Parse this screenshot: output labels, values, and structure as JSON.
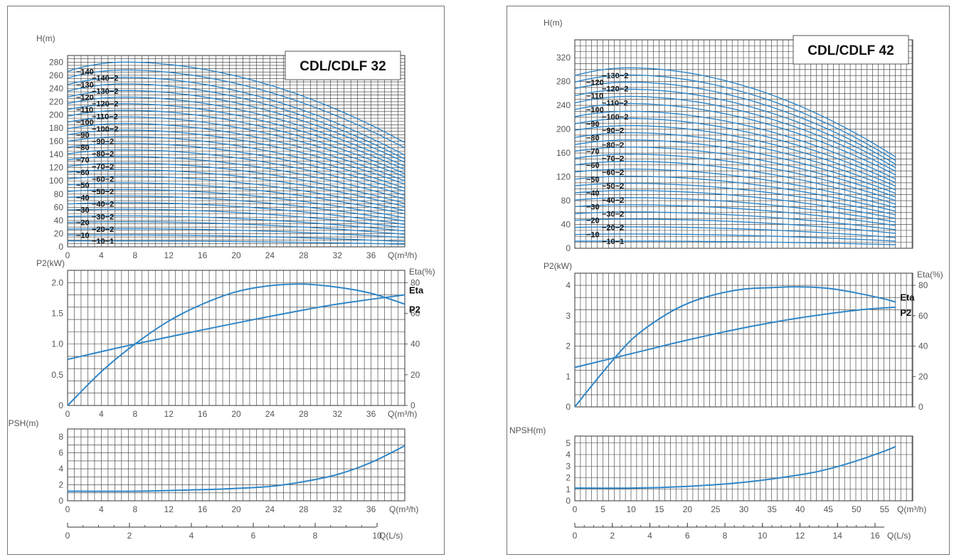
{
  "colors": {
    "curve": "#2f86c8",
    "grid": "#333333",
    "frame": "#777777"
  },
  "chart_data": [
    {
      "type": "line",
      "model": "CDL/CDLF 32",
      "head": {
        "ylabel": "H(m)",
        "xlabel": "Q(m³/h)",
        "xlim": [
          0,
          40
        ],
        "ylim": [
          0,
          290
        ],
        "xticks": [
          0,
          4,
          8,
          12,
          16,
          20,
          24,
          28,
          32,
          36
        ],
        "yticks": [
          0,
          20,
          40,
          60,
          80,
          100,
          120,
          140,
          160,
          180,
          200,
          220,
          240,
          260,
          280
        ],
        "series": [
          {
            "name": "10-1",
            "H0": 9,
            "Hmax": 8.8,
            "Hend": 4
          },
          {
            "name": "10",
            "H0": 18,
            "Hmax": 18,
            "Hend": 8
          },
          {
            "name": "20-2",
            "H0": 27,
            "Hmax": 27.5,
            "Hend": 14
          },
          {
            "name": "20",
            "H0": 37,
            "Hmax": 38,
            "Hend": 19
          },
          {
            "name": "30-2",
            "H0": 46,
            "Hmax": 47,
            "Hend": 24
          },
          {
            "name": "30",
            "H0": 56,
            "Hmax": 57,
            "Hend": 29
          },
          {
            "name": "40-2",
            "H0": 65,
            "Hmax": 67,
            "Hend": 34
          },
          {
            "name": "40",
            "H0": 75,
            "Hmax": 77,
            "Hend": 39
          },
          {
            "name": "50-2",
            "H0": 84,
            "Hmax": 87,
            "Hend": 44
          },
          {
            "name": "50",
            "H0": 94,
            "Hmax": 97,
            "Hend": 50
          },
          {
            "name": "60-2",
            "H0": 103,
            "Hmax": 107,
            "Hend": 55
          },
          {
            "name": "60",
            "H0": 113,
            "Hmax": 117,
            "Hend": 61
          },
          {
            "name": "70-2",
            "H0": 122,
            "Hmax": 127,
            "Hend": 66
          },
          {
            "name": "70",
            "H0": 132,
            "Hmax": 137,
            "Hend": 72
          },
          {
            "name": "80-2",
            "H0": 141,
            "Hmax": 147,
            "Hend": 78
          },
          {
            "name": "80",
            "H0": 151,
            "Hmax": 157,
            "Hend": 84
          },
          {
            "name": "90-2",
            "H0": 160,
            "Hmax": 167,
            "Hend": 89
          },
          {
            "name": "90",
            "H0": 170,
            "Hmax": 177,
            "Hend": 95
          },
          {
            "name": "100-2",
            "H0": 179,
            "Hmax": 187,
            "Hend": 100
          },
          {
            "name": "100",
            "H0": 189,
            "Hmax": 197,
            "Hend": 106
          },
          {
            "name": "110-2",
            "H0": 198,
            "Hmax": 207,
            "Hend": 111
          },
          {
            "name": "110",
            "H0": 208,
            "Hmax": 217,
            "Hend": 117
          },
          {
            "name": "120-2",
            "H0": 217,
            "Hmax": 227,
            "Hend": 122
          },
          {
            "name": "120",
            "H0": 227,
            "Hmax": 237,
            "Hend": 128
          },
          {
            "name": "130-2",
            "H0": 236,
            "Hmax": 247,
            "Hend": 133
          },
          {
            "name": "130",
            "H0": 246,
            "Hmax": 257,
            "Hend": 139
          },
          {
            "name": "140-2",
            "H0": 256,
            "Hmax": 268,
            "Hend": 150
          },
          {
            "name": "140",
            "H0": 266,
            "Hmax": 280,
            "Hend": 158
          }
        ]
      },
      "power": {
        "ylabel": "P2(kW)",
        "y2label": "Eta(%)",
        "xlabel": "Q(m³/h)",
        "xlim": [
          0,
          40
        ],
        "ylim": [
          0,
          2.2
        ],
        "y2lim": [
          0,
          88
        ],
        "yticks": [
          0,
          0.5,
          1.0,
          1.5,
          2.0
        ],
        "ytick_labels": [
          "0",
          "0.5",
          "1.0",
          "1.5",
          "2.0"
        ],
        "y2ticks": [
          0,
          20,
          40,
          60,
          80
        ],
        "xticks": [
          0,
          4,
          8,
          12,
          16,
          20,
          24,
          28,
          32,
          36
        ],
        "eta": {
          "name": "Eta",
          "x": [
            0,
            4,
            8,
            12,
            16,
            20,
            24,
            28,
            32,
            36,
            40
          ],
          "y": [
            0,
            22,
            40,
            55,
            66,
            74,
            78,
            79,
            77,
            73,
            66
          ]
        },
        "p2": {
          "name": "P2",
          "x": [
            0,
            8,
            16,
            24,
            32,
            40
          ],
          "y": [
            0.75,
            1.0,
            1.23,
            1.45,
            1.65,
            1.8
          ]
        }
      },
      "npsh": {
        "ylabel": "NPSH(m)",
        "xlabel": "Q(m³/h)",
        "xlim": [
          0,
          40
        ],
        "ylim": [
          0,
          9
        ],
        "yticks": [
          0,
          2,
          4,
          6,
          8
        ],
        "xticks": [
          0,
          4,
          8,
          12,
          16,
          20,
          24,
          28,
          32,
          36
        ],
        "x": [
          0,
          8,
          16,
          20,
          24,
          28,
          32,
          36,
          40
        ],
        "y": [
          1.2,
          1.2,
          1.4,
          1.55,
          1.8,
          2.4,
          3.3,
          4.8,
          6.9
        ]
      },
      "ls_axis": {
        "label": "Q(L/s)",
        "ticks": [
          0,
          2,
          4,
          6,
          8,
          10
        ],
        "m3h_per_unit": 3.6
      }
    },
    {
      "type": "line",
      "model": "CDL/CDLF 42",
      "head": {
        "ylabel": "H(m)",
        "xlabel": "Q(m³/h)",
        "xlim": [
          0,
          60
        ],
        "ylim": [
          0,
          350
        ],
        "xticks": [],
        "yticks": [
          0,
          40,
          80,
          120,
          160,
          200,
          240,
          280,
          320
        ],
        "series": [
          {
            "name": "10-1",
            "H0": 12,
            "Hmax": 12,
            "Hend": 6
          },
          {
            "name": "10",
            "H0": 23,
            "Hmax": 24,
            "Hend": 12
          },
          {
            "name": "20-2",
            "H0": 35,
            "Hmax": 36,
            "Hend": 18
          },
          {
            "name": "20",
            "H0": 47,
            "Hmax": 49,
            "Hend": 25
          },
          {
            "name": "30-2",
            "H0": 58,
            "Hmax": 61,
            "Hend": 31
          },
          {
            "name": "30",
            "H0": 70,
            "Hmax": 73,
            "Hend": 38
          },
          {
            "name": "40-2",
            "H0": 81,
            "Hmax": 85,
            "Hend": 44
          },
          {
            "name": "40",
            "H0": 93,
            "Hmax": 97,
            "Hend": 50
          },
          {
            "name": "50-2",
            "H0": 105,
            "Hmax": 109,
            "Hend": 56
          },
          {
            "name": "50",
            "H0": 116,
            "Hmax": 121,
            "Hend": 62
          },
          {
            "name": "60-2",
            "H0": 128,
            "Hmax": 133,
            "Hend": 68
          },
          {
            "name": "60",
            "H0": 140,
            "Hmax": 146,
            "Hend": 74
          },
          {
            "name": "70-2",
            "H0": 151,
            "Hmax": 158,
            "Hend": 80
          },
          {
            "name": "70",
            "H0": 163,
            "Hmax": 170,
            "Hend": 86
          },
          {
            "name": "80-2",
            "H0": 174,
            "Hmax": 182,
            "Hend": 92
          },
          {
            "name": "80",
            "H0": 186,
            "Hmax": 194,
            "Hend": 98
          },
          {
            "name": "90-2",
            "H0": 198,
            "Hmax": 206,
            "Hend": 104
          },
          {
            "name": "90",
            "H0": 209,
            "Hmax": 218,
            "Hend": 110
          },
          {
            "name": "100-2",
            "H0": 221,
            "Hmax": 230,
            "Hend": 116
          },
          {
            "name": "100",
            "H0": 233,
            "Hmax": 243,
            "Hend": 123
          },
          {
            "name": "110-2",
            "H0": 244,
            "Hmax": 255,
            "Hend": 129
          },
          {
            "name": "110",
            "H0": 256,
            "Hmax": 267,
            "Hend": 135
          },
          {
            "name": "120-2",
            "H0": 268,
            "Hmax": 279,
            "Hend": 141
          },
          {
            "name": "120",
            "H0": 279,
            "Hmax": 291,
            "Hend": 147
          },
          {
            "name": "130-2",
            "H0": 290,
            "Hmax": 303,
            "Hend": 153
          }
        ]
      },
      "power": {
        "ylabel": "P2(kW)",
        "y2label": "Eta(%)",
        "xlabel": "",
        "xlim": [
          0,
          60
        ],
        "ylim": [
          0,
          4.4
        ],
        "y2lim": [
          0,
          88
        ],
        "yticks": [
          0,
          1,
          2,
          3,
          4
        ],
        "ytick_labels": [
          "0",
          "1",
          "2",
          "3",
          "4"
        ],
        "y2ticks": [
          0,
          20,
          40,
          60,
          80
        ],
        "xticks": [],
        "eta": {
          "name": "Eta",
          "x": [
            0,
            5,
            10,
            15,
            20,
            25,
            30,
            35,
            40,
            45,
            50,
            55,
            57
          ],
          "y": [
            0,
            23,
            44,
            58,
            68,
            74,
            77.5,
            78.5,
            79,
            78,
            75,
            71,
            69
          ]
        },
        "p2": {
          "name": "P2",
          "x": [
            0,
            10,
            20,
            30,
            40,
            50,
            57
          ],
          "y": [
            1.3,
            1.75,
            2.2,
            2.6,
            2.93,
            3.18,
            3.28
          ]
        }
      },
      "npsh": {
        "ylabel": "NPSH(m)",
        "xlabel": "Q(m³/h)",
        "xlim": [
          0,
          60
        ],
        "ylim": [
          0,
          5.6
        ],
        "yticks": [
          0,
          1,
          2,
          3,
          4,
          5
        ],
        "xticks": [
          0,
          5,
          10,
          15,
          20,
          25,
          30,
          35,
          40,
          45,
          50,
          55
        ],
        "x": [
          0,
          10,
          20,
          30,
          40,
          45,
          50,
          55,
          57
        ],
        "y": [
          1.1,
          1.1,
          1.25,
          1.6,
          2.25,
          2.75,
          3.45,
          4.3,
          4.7
        ]
      },
      "ls_axis": {
        "label": "Q(L/s)",
        "ticks": [
          0,
          2,
          4,
          6,
          8,
          10,
          12,
          14,
          16
        ],
        "m3h_per_unit": 3.6
      }
    }
  ]
}
